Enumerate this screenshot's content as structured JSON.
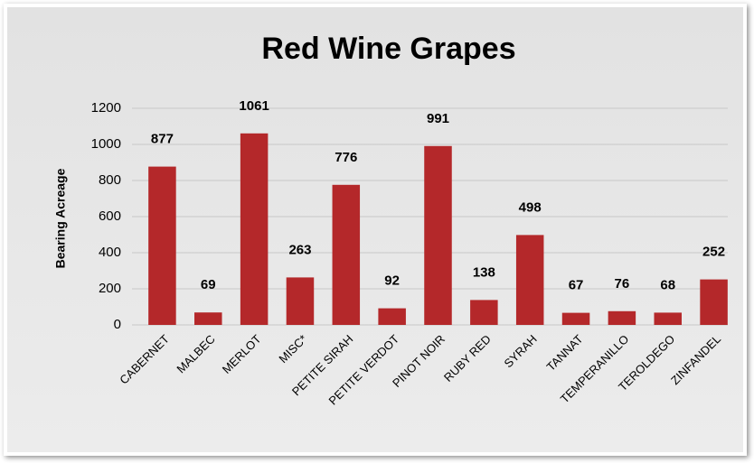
{
  "chart_data": {
    "type": "bar",
    "title": "Red Wine Grapes",
    "y_label": "Bearing Acreage",
    "categories": [
      "CABERNET",
      "MALBEC",
      "MERLOT",
      "MISC*",
      "PETITE SIRAH",
      "PETITE VERDOT",
      "PINOT NOIR",
      "RUBY RED",
      "SYRAH",
      "TANNAT",
      "TEMPERANILLO",
      "TEROLDEGO",
      "ZINFANDEL"
    ],
    "values": [
      877,
      69,
      1061,
      263,
      776,
      92,
      991,
      138,
      498,
      67,
      76,
      68,
      252
    ],
    "color": "#b4282a",
    "ylim": [
      0,
      1200
    ],
    "yticks": [
      0,
      200,
      400,
      600,
      800,
      1000,
      1200
    ],
    "grid": true
  }
}
